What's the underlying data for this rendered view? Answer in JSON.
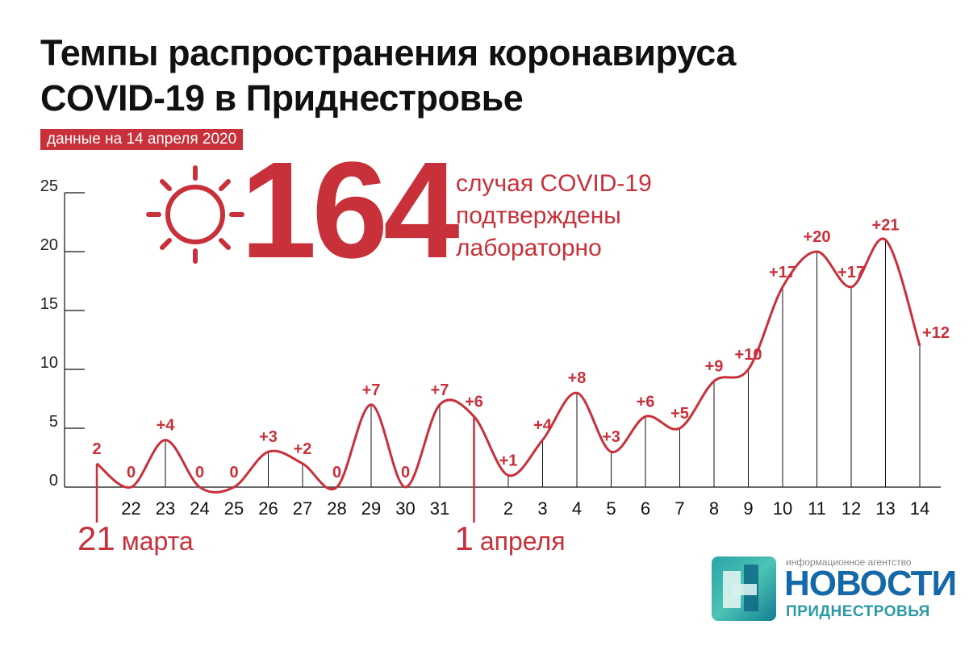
{
  "title_lines": [
    "Темпы распространения коронавируса",
    "COVID-19 в Приднестровье"
  ],
  "date_badge": "данные на 14 апреля 2020",
  "headline": {
    "total": "164",
    "caption_lines": [
      "случая COVID-19",
      "подтверждены",
      "лабораторно"
    ]
  },
  "colors": {
    "accent": "#c8303a",
    "axis": "#111111",
    "logo_blue": "#1569a8",
    "logo_teal": "#2b9aa6"
  },
  "icon": "sun-icon",
  "chart_data": {
    "type": "line",
    "title": "",
    "xlabel": "",
    "ylabel": "",
    "ylim": [
      0,
      25
    ],
    "y_ticks": [
      "0",
      "5",
      "10",
      "15",
      "20",
      "25"
    ],
    "grid": false,
    "x": [
      "21",
      "22",
      "23",
      "24",
      "25",
      "26",
      "27",
      "28",
      "29",
      "30",
      "31",
      "1",
      "2",
      "3",
      "4",
      "5",
      "6",
      "7",
      "8",
      "9",
      "10",
      "11",
      "12",
      "13",
      "14"
    ],
    "values": [
      2,
      0,
      4,
      0,
      0,
      3,
      2,
      0,
      7,
      0,
      7,
      6,
      1,
      4,
      8,
      3,
      6,
      5,
      9,
      10,
      17,
      20,
      17,
      21,
      12
    ],
    "data_labels": [
      "2",
      "0",
      "+4",
      "0",
      "0",
      "+3",
      "+2",
      "0",
      "+7",
      "0",
      "+7",
      "+6",
      "+1",
      "+4",
      "+8",
      "+3",
      "+6",
      "+5",
      "+9",
      "+10",
      "+17",
      "+20",
      "+17",
      "+21",
      "+12"
    ],
    "tick_labels": [
      "",
      "22",
      "23",
      "24",
      "25",
      "26",
      "27",
      "28",
      "29",
      "30",
      "31",
      "",
      "2",
      "3",
      "4",
      "5",
      "6",
      "7",
      "8",
      "9",
      "10",
      "11",
      "12",
      "13",
      "14"
    ],
    "month_markers": [
      {
        "index": 0,
        "day": "21",
        "month": "марта"
      },
      {
        "index": 11,
        "day": "1",
        "month": "апреля"
      }
    ]
  },
  "logo": {
    "caption": "информационное агентство",
    "name": "НОВОСТИ",
    "sub": "ПРИДНЕСТРОВЬЯ"
  }
}
